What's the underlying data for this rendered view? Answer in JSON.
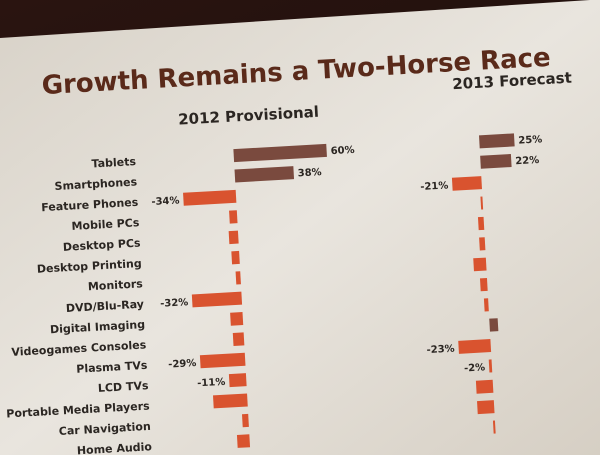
{
  "chart_data": {
    "type": "bar",
    "title": "Growth Remains a Two-Horse Race",
    "categories": [
      "Tablets",
      "Smartphones",
      "Feature Phones",
      "Mobile PCs",
      "Desktop PCs",
      "Desktop Printing",
      "Monitors",
      "DVD/Blu-Ray",
      "Digital Imaging",
      "Videogames Consoles",
      "Plasma TVs",
      "LCD TVs",
      "Portable Media Players",
      "Car Navigation",
      "Home Audio"
    ],
    "series": [
      {
        "name": "2012 Provisional",
        "values": [
          60,
          38,
          -34,
          -5,
          -6,
          -5,
          -3,
          -32,
          -8,
          -7,
          -29,
          -11,
          -22,
          -4,
          -8
        ],
        "labels": [
          "60%",
          "38%",
          "-34%",
          "",
          "",
          "",
          "",
          "-32%",
          "",
          "",
          "-29%",
          "-11%",
          "",
          "",
          ""
        ]
      },
      {
        "name": "2013 Forecast",
        "values": [
          25,
          22,
          -21,
          -1,
          -4,
          -4,
          -9,
          -5,
          -3,
          6,
          -23,
          -2,
          -12,
          -12,
          -1
        ],
        "labels": [
          "25%",
          "22%",
          "-21%",
          "",
          "",
          "",
          "",
          "",
          "",
          "",
          "-23%",
          "-2%",
          "",
          "",
          ""
        ]
      }
    ],
    "colors": {
      "positive": "#7a4a3e",
      "negative": "#d9532f"
    },
    "grid": false
  }
}
